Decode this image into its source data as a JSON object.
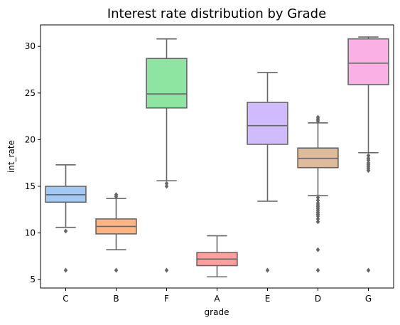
{
  "chart_data": {
    "type": "box",
    "title": "Interest rate distribution by Grade",
    "xlabel": "grade",
    "ylabel": "int_rate",
    "ylim": [
      4.1,
      32.3
    ],
    "yticks": [
      5,
      10,
      15,
      20,
      25,
      30
    ],
    "grid": false,
    "categories": [
      "C",
      "B",
      "F",
      "A",
      "E",
      "D",
      "G"
    ],
    "colors": [
      "#a1c9f4",
      "#ffb482",
      "#8de5a1",
      "#ff9f9b",
      "#d0bbff",
      "#debb9b",
      "#fab0e4"
    ],
    "boxes": [
      {
        "category": "C",
        "whisker_low": 10.6,
        "q1": 13.3,
        "median": 14.1,
        "q3": 15.0,
        "whisker_high": 17.3,
        "outliers": [
          10.2,
          6.0
        ]
      },
      {
        "category": "B",
        "whisker_low": 8.2,
        "q1": 9.9,
        "median": 10.7,
        "q3": 11.5,
        "whisker_high": 13.7,
        "outliers": [
          14.1,
          13.9,
          6.0
        ]
      },
      {
        "category": "F",
        "whisker_low": 15.6,
        "q1": 23.4,
        "median": 24.9,
        "q3": 28.7,
        "whisker_high": 30.8,
        "outliers": [
          15.3,
          15.0,
          6.0
        ]
      },
      {
        "category": "A",
        "whisker_low": 5.3,
        "q1": 6.5,
        "median": 7.2,
        "q3": 7.9,
        "whisker_high": 9.7,
        "outliers": []
      },
      {
        "category": "E",
        "whisker_low": 13.4,
        "q1": 19.5,
        "median": 21.5,
        "q3": 24.0,
        "whisker_high": 27.2,
        "outliers": [
          6.0
        ]
      },
      {
        "category": "D",
        "whisker_low": 14.0,
        "q1": 17.0,
        "median": 18.0,
        "q3": 19.1,
        "whisker_high": 21.8,
        "outliers": [
          22.4,
          22.2,
          22.0,
          13.8,
          13.5,
          13.2,
          13.0,
          12.8,
          12.6,
          12.4,
          12.2,
          12.0,
          11.8,
          11.5,
          11.2,
          8.2,
          6.0
        ]
      },
      {
        "category": "G",
        "whisker_low": 18.6,
        "q1": 25.9,
        "median": 28.2,
        "q3": 30.8,
        "whisker_high": 31.0,
        "outliers": [
          18.3,
          18.0,
          17.8,
          17.5,
          17.3,
          17.1,
          16.9,
          16.7,
          6.0
        ]
      }
    ]
  }
}
